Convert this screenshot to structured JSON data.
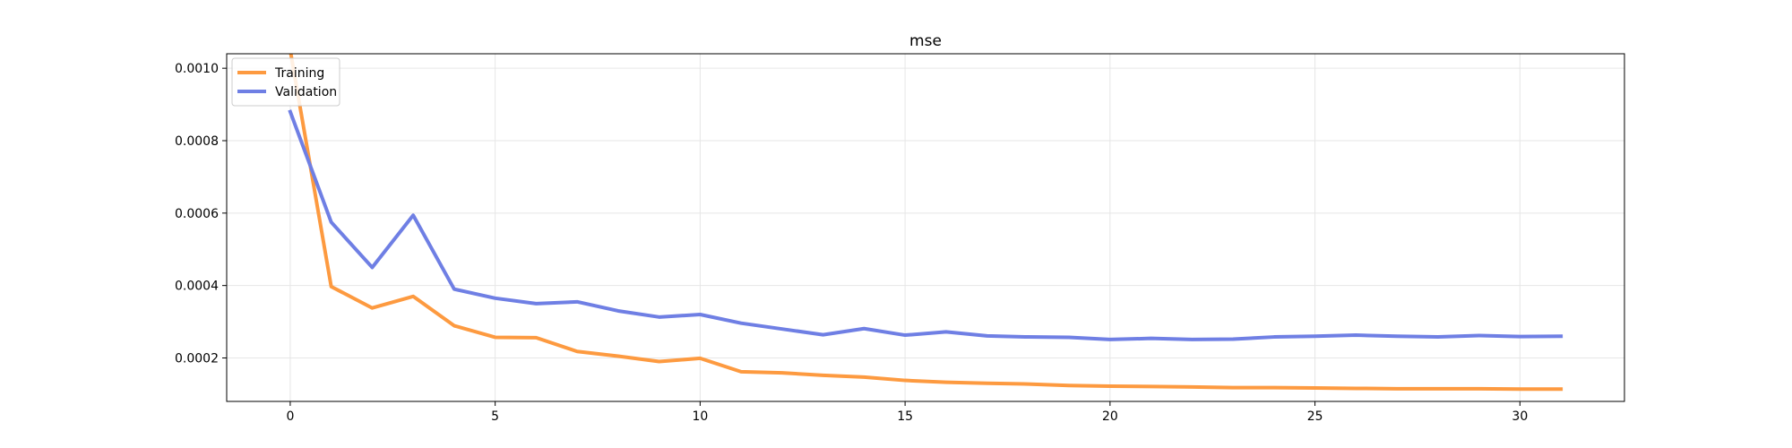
{
  "chart_data": {
    "type": "line",
    "title": "mse",
    "xlabel": "",
    "ylabel": "",
    "xlim": [
      -1.55,
      32.55
    ],
    "ylim": [
      8e-05,
      0.00104
    ],
    "xticks": [
      0,
      5,
      10,
      15,
      20,
      25,
      30
    ],
    "xtick_labels": [
      "0",
      "5",
      "10",
      "15",
      "20",
      "25",
      "30"
    ],
    "yticks": [
      0.0002,
      0.0004,
      0.0006,
      0.0008,
      0.001
    ],
    "ytick_labels": [
      "0.0002",
      "0.0004",
      "0.0006",
      "0.0008",
      "0.0010"
    ],
    "grid": true,
    "legend_position": "top-left",
    "x": [
      0,
      1,
      2,
      3,
      4,
      5,
      6,
      7,
      8,
      9,
      10,
      11,
      12,
      13,
      14,
      15,
      16,
      17,
      18,
      19,
      20,
      21,
      22,
      23,
      24,
      25,
      26,
      27,
      28,
      29,
      30,
      31
    ],
    "series": [
      {
        "name": "Training",
        "color": "#fd9a40",
        "values": [
          0.00105,
          0.000397,
          0.000338,
          0.00037,
          0.000289,
          0.000257,
          0.000256,
          0.000218,
          0.000205,
          0.00019,
          0.000199,
          0.000162,
          0.000159,
          0.000152,
          0.000147,
          0.000138,
          0.000133,
          0.00013,
          0.000128,
          0.000124,
          0.000122,
          0.000121,
          0.00012,
          0.000118,
          0.000118,
          0.000117,
          0.000116,
          0.000115,
          0.000115,
          0.000115,
          0.000114,
          0.000114
        ]
      },
      {
        "name": "Validation",
        "color": "#6f7fe4",
        "values": [
          0.00088,
          0.000575,
          0.00045,
          0.000594,
          0.00039,
          0.000365,
          0.00035,
          0.000355,
          0.00033,
          0.000313,
          0.00032,
          0.000296,
          0.00028,
          0.000264,
          0.000281,
          0.000263,
          0.000272,
          0.000261,
          0.000258,
          0.000257,
          0.000251,
          0.000254,
          0.000251,
          0.000252,
          0.000258,
          0.00026,
          0.000263,
          0.00026,
          0.000258,
          0.000262,
          0.000259,
          0.00026
        ]
      }
    ]
  }
}
